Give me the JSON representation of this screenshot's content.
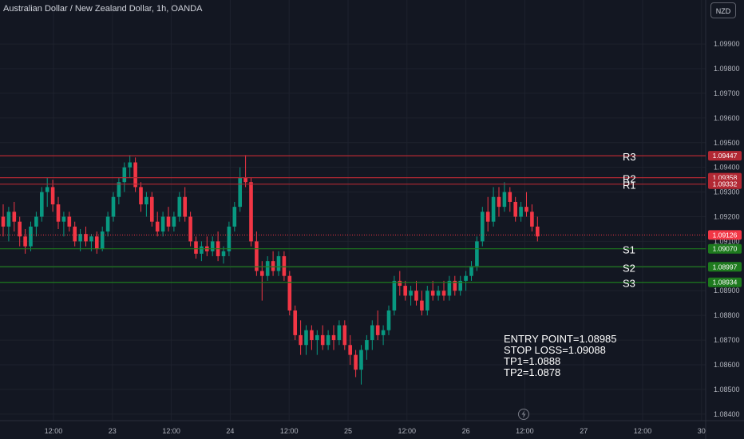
{
  "header": {
    "title": "Australian Dollar / New Zealand Dollar, 1h, OANDA",
    "currency": "NZD"
  },
  "notes": {
    "entry": "ENTRY POINT=1.08985",
    "stop": "STOP LOSS=1.09088",
    "tp1": "TP1=1.0888",
    "tp2": "TP2=1.0878"
  },
  "colors": {
    "background": "#131722",
    "up": "#089981",
    "down": "#f23645",
    "resistance": "#b22833",
    "support": "#1e7a1e",
    "grid": "#1e222d",
    "axis_text": "#b2b5be"
  },
  "chart_data": {
    "type": "candlestick",
    "symbol": "AUDNZD",
    "timeframe": "1h",
    "ylim": [
      1.0838,
      1.1002
    ],
    "y_ticks": [
      1.099,
      1.098,
      1.097,
      1.096,
      1.095,
      1.094,
      1.093,
      1.092,
      1.091,
      1.09,
      1.089,
      1.088,
      1.087,
      1.086,
      1.085,
      1.084
    ],
    "y_tick_labels": [
      "1.09900",
      "1.09800",
      "1.09700",
      "1.09600",
      "1.09500",
      "1.09400",
      "1.09300",
      "1.09200",
      "1.09100",
      "1.09000",
      "1.08900",
      "1.08800",
      "1.08700",
      "1.08600",
      "1.08500",
      "1.08400"
    ],
    "x_ticks": [
      "12:00",
      "23",
      "12:00",
      "24",
      "12:00",
      "25",
      "12:00",
      "26",
      "12:00",
      "27",
      "12:00",
      "30"
    ],
    "levels": [
      {
        "label": "R3",
        "value": 1.09447,
        "price_label": "1.09447",
        "kind": "resistance"
      },
      {
        "label": "R2",
        "value": 1.09358,
        "price_label": "1.09358",
        "kind": "resistance"
      },
      {
        "label": "R1",
        "value": 1.09332,
        "price_label": "1.09332",
        "kind": "resistance"
      },
      {
        "label": "S1",
        "value": 1.0907,
        "price_label": "1.09070",
        "kind": "support"
      },
      {
        "label": "S2",
        "value": 1.08997,
        "price_label": "1.08997",
        "kind": "support"
      },
      {
        "label": "S3",
        "value": 1.08934,
        "price_label": "1.08934",
        "kind": "support"
      }
    ],
    "current_price": {
      "value": 1.09126,
      "label": "1.09126"
    },
    "candles": [
      [
        1.092,
        1.0925,
        1.0912,
        1.0916
      ],
      [
        1.0916,
        1.0924,
        1.091,
        1.0922
      ],
      [
        1.0922,
        1.0926,
        1.0914,
        1.0918
      ],
      [
        1.0918,
        1.092,
        1.0908,
        1.0912
      ],
      [
        1.0912,
        1.0915,
        1.0905,
        1.0908
      ],
      [
        1.0908,
        1.0918,
        1.0906,
        1.0916
      ],
      [
        1.0916,
        1.0922,
        1.0912,
        1.092
      ],
      [
        1.092,
        1.0932,
        1.0918,
        1.093
      ],
      [
        1.093,
        1.0936,
        1.0924,
        1.0932
      ],
      [
        1.0932,
        1.0935,
        1.0922,
        1.0925
      ],
      [
        1.0925,
        1.0928,
        1.0915,
        1.0918
      ],
      [
        1.0918,
        1.0922,
        1.0912,
        1.092
      ],
      [
        1.092,
        1.0922,
        1.0914,
        1.0916
      ],
      [
        1.0916,
        1.0918,
        1.0908,
        1.091
      ],
      [
        1.091,
        1.0915,
        1.0906,
        1.0913
      ],
      [
        1.0913,
        1.0916,
        1.0908,
        1.091
      ],
      [
        1.091,
        1.0913,
        1.0906,
        1.0912
      ],
      [
        1.0912,
        1.0914,
        1.0905,
        1.0907
      ],
      [
        1.0907,
        1.0916,
        1.0906,
        1.0914
      ],
      [
        1.0914,
        1.0922,
        1.0912,
        1.092
      ],
      [
        1.092,
        1.093,
        1.0918,
        1.0928
      ],
      [
        1.0928,
        1.0936,
        1.0925,
        1.0934
      ],
      [
        1.0934,
        1.0942,
        1.093,
        1.094
      ],
      [
        1.094,
        1.0945,
        1.0936,
        1.0942
      ],
      [
        1.0942,
        1.0944,
        1.093,
        1.0932
      ],
      [
        1.0932,
        1.0934,
        1.0922,
        1.0925
      ],
      [
        1.0925,
        1.093,
        1.092,
        1.0928
      ],
      [
        1.0928,
        1.093,
        1.0916,
        1.0918
      ],
      [
        1.0918,
        1.0922,
        1.0912,
        1.0914
      ],
      [
        1.0914,
        1.0922,
        1.0912,
        1.092
      ],
      [
        1.092,
        1.0924,
        1.0914,
        1.0916
      ],
      [
        1.0916,
        1.0922,
        1.0914,
        1.092
      ],
      [
        1.092,
        1.093,
        1.0918,
        1.0928
      ],
      [
        1.0928,
        1.0932,
        1.0918,
        1.092
      ],
      [
        1.092,
        1.0922,
        1.0908,
        1.091
      ],
      [
        1.091,
        1.0912,
        1.0903,
        1.0905
      ],
      [
        1.0905,
        1.091,
        1.0902,
        1.0908
      ],
      [
        1.0908,
        1.0912,
        1.0904,
        1.0906
      ],
      [
        1.0906,
        1.0912,
        1.0904,
        1.091
      ],
      [
        1.091,
        1.0914,
        1.0902,
        1.0904
      ],
      [
        1.0904,
        1.0908,
        1.0901,
        1.0906
      ],
      [
        1.0906,
        1.0918,
        1.0904,
        1.0916
      ],
      [
        1.0916,
        1.0926,
        1.0914,
        1.0924
      ],
      [
        1.0924,
        1.094,
        1.0922,
        1.0936
      ],
      [
        1.0936,
        1.0945,
        1.0932,
        1.0934
      ],
      [
        1.0934,
        1.0936,
        1.0908,
        1.091
      ],
      [
        1.091,
        1.0914,
        1.0896,
        1.0898
      ],
      [
        1.0898,
        1.0902,
        1.0886,
        1.0896
      ],
      [
        1.0896,
        1.0904,
        1.0894,
        1.0902
      ],
      [
        1.0902,
        1.0906,
        1.0896,
        1.0898
      ],
      [
        1.0898,
        1.0906,
        1.0896,
        1.0904
      ],
      [
        1.0904,
        1.0906,
        1.0894,
        1.0896
      ],
      [
        1.0896,
        1.0898,
        1.088,
        1.0882
      ],
      [
        1.0882,
        1.0884,
        1.087,
        1.0872
      ],
      [
        1.0872,
        1.0878,
        1.0864,
        1.0868
      ],
      [
        1.0868,
        1.0876,
        1.0864,
        1.0874
      ],
      [
        1.0874,
        1.0876,
        1.0866,
        1.087
      ],
      [
        1.087,
        1.0874,
        1.0864,
        1.0872
      ],
      [
        1.0872,
        1.0876,
        1.0866,
        1.0868
      ],
      [
        1.0868,
        1.0874,
        1.0866,
        1.0872
      ],
      [
        1.0872,
        1.0876,
        1.0866,
        1.087
      ],
      [
        1.087,
        1.0878,
        1.0868,
        1.0876
      ],
      [
        1.0876,
        1.0878,
        1.0866,
        1.0868
      ],
      [
        1.0868,
        1.0872,
        1.086,
        1.0864
      ],
      [
        1.0864,
        1.0866,
        1.0855,
        1.0858
      ],
      [
        1.0858,
        1.0868,
        1.0852,
        1.0866
      ],
      [
        1.0866,
        1.0872,
        1.0862,
        1.087
      ],
      [
        1.087,
        1.0878,
        1.0866,
        1.0876
      ],
      [
        1.0876,
        1.0882,
        1.087,
        1.0872
      ],
      [
        1.0872,
        1.0876,
        1.0868,
        1.0874
      ],
      [
        1.0874,
        1.0884,
        1.0872,
        1.0882
      ],
      [
        1.0882,
        1.0896,
        1.088,
        1.0894
      ],
      [
        1.0894,
        1.0898,
        1.0888,
        1.0892
      ],
      [
        1.0892,
        1.0894,
        1.0886,
        1.0888
      ],
      [
        1.0888,
        1.0892,
        1.0884,
        1.089
      ],
      [
        1.089,
        1.0894,
        1.0884,
        1.0886
      ],
      [
        1.0886,
        1.089,
        1.088,
        1.0882
      ],
      [
        1.0882,
        1.0892,
        1.088,
        1.089
      ],
      [
        1.089,
        1.0894,
        1.0886,
        1.0888
      ],
      [
        1.0888,
        1.0892,
        1.0886,
        1.089
      ],
      [
        1.089,
        1.0894,
        1.0886,
        1.0888
      ],
      [
        1.0888,
        1.0896,
        1.0886,
        1.0894
      ],
      [
        1.0894,
        1.0896,
        1.0888,
        1.089
      ],
      [
        1.089,
        1.0896,
        1.0888,
        1.0894
      ],
      [
        1.0894,
        1.0898,
        1.089,
        1.0896
      ],
      [
        1.0896,
        1.0902,
        1.0894,
        1.09
      ],
      [
        1.09,
        1.0912,
        1.0898,
        1.091
      ],
      [
        1.091,
        1.0924,
        1.0908,
        1.0922
      ],
      [
        1.0922,
        1.0928,
        1.0914,
        1.0918
      ],
      [
        1.0918,
        1.0932,
        1.0916,
        1.0928
      ],
      [
        1.0928,
        1.0932,
        1.092,
        1.0924
      ],
      [
        1.0924,
        1.0934,
        1.0922,
        1.093
      ],
      [
        1.093,
        1.0932,
        1.0922,
        1.0926
      ],
      [
        1.0926,
        1.0928,
        1.0918,
        1.092
      ],
      [
        1.092,
        1.0926,
        1.0918,
        1.0924
      ],
      [
        1.0924,
        1.093,
        1.092,
        1.0922
      ],
      [
        1.0922,
        1.0925,
        1.0914,
        1.0916
      ],
      [
        1.0916,
        1.092,
        1.091,
        1.0912
      ]
    ]
  }
}
